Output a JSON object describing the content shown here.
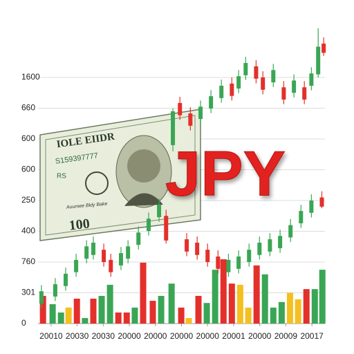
{
  "chart_data": {
    "type": "candlestick",
    "title": "JPY",
    "ylim": [
      0,
      10
    ],
    "yticks": [
      0,
      {
        "value": 1,
        "label": "301"
      },
      {
        "value": 2,
        "label": "760"
      },
      {
        "value": 3,
        "label": "400"
      },
      {
        "value": 4,
        "label": "250"
      },
      {
        "value": 5,
        "label": "600"
      },
      {
        "value": 6,
        "label": "600"
      },
      {
        "value": 7,
        "label": "660"
      },
      {
        "value": 8,
        "label": "1600"
      }
    ],
    "xlim": [
      -0.5,
      10.5
    ],
    "xticks": [
      {
        "value": 0,
        "label": "20010"
      },
      {
        "value": 1,
        "label": "20030"
      },
      {
        "value": 2,
        "label": "20030"
      },
      {
        "value": 3,
        "label": "20000"
      },
      {
        "value": 4,
        "label": "20000"
      },
      {
        "value": 5,
        "label": "20000"
      },
      {
        "value": 6,
        "label": "20000"
      },
      {
        "value": 7,
        "label": "20001"
      },
      {
        "value": 8,
        "label": "20000"
      },
      {
        "value": 9,
        "label": "20009"
      },
      {
        "value": 10,
        "label": "20017"
      }
    ],
    "grid": true,
    "up_color": "#3aa655",
    "down_color": "#e3302b",
    "candles": {
      "x": [
        -0.37,
        0.16,
        0.56,
        0.96,
        1.36,
        1.62,
        2.02,
        2.29,
        2.68,
        2.95,
        3.35,
        3.74,
        4.14,
        4.41,
        4.67,
        4.94,
        5.34,
        5.73,
        6.13,
        6.53,
        6.93,
        7.19,
        7.46,
        7.86,
        8.12,
        8.52,
        8.92,
        9.31,
        9.71,
        9.98,
        10.24,
        10.45,
        5.2,
        5.6,
        6.0,
        6.4,
        6.8,
        7.19,
        7.59,
        7.99,
        8.39,
        8.78,
        9.18,
        9.58,
        9.98,
        10.38
      ],
      "open": [
        0.65,
        0.88,
        1.22,
        1.67,
        2.11,
        2.23,
        2.4,
        2.07,
        1.89,
        2.11,
        2.56,
        3.01,
        3.46,
        3.5,
        5.8,
        7.17,
        6.83,
        6.65,
        6.99,
        7.33,
        7.8,
        7.64,
        8.07,
        8.36,
        8.0,
        7.84,
        7.68,
        7.5,
        7.68,
        7.73,
        8.1,
        9.1,
        2.74,
        2.63,
        2.4,
        2.18,
        1.67,
        1.78,
        2.0,
        2.23,
        2.34,
        2.45,
        2.8,
        3.26,
        3.6,
        4.1
      ],
      "high": [
        1.25,
        1.48,
        1.82,
        2.27,
        2.71,
        2.83,
        2.6,
        2.27,
        2.49,
        2.71,
        3.16,
        3.61,
        4.06,
        3.7,
        7.0,
        7.37,
        7.03,
        7.25,
        7.59,
        7.93,
        8.0,
        8.24,
        8.67,
        8.56,
        8.2,
        8.44,
        7.88,
        8.1,
        7.88,
        8.33,
        9.6,
        9.3,
        2.94,
        2.83,
        2.6,
        2.38,
        2.27,
        2.38,
        2.6,
        2.83,
        2.94,
        3.05,
        3.4,
        3.86,
        4.2,
        4.3
      ],
      "low": [
        0.5,
        0.73,
        1.07,
        1.52,
        1.96,
        2.08,
        1.85,
        1.52,
        1.74,
        1.96,
        2.41,
        2.86,
        3.31,
        2.6,
        5.6,
        6.62,
        6.28,
        6.5,
        6.84,
        7.18,
        7.25,
        7.49,
        7.92,
        7.81,
        7.45,
        7.69,
        7.13,
        7.35,
        7.13,
        7.58,
        8.0,
        8.7,
        2.19,
        2.08,
        1.85,
        1.63,
        1.52,
        1.63,
        1.85,
        2.08,
        2.19,
        2.3,
        2.65,
        3.11,
        3.45,
        3.75
      ],
      "close": [
        1.05,
        1.28,
        1.62,
        2.07,
        2.51,
        2.63,
        2.0,
        1.67,
        2.29,
        2.51,
        2.96,
        3.41,
        3.86,
        2.7,
        6.9,
        6.77,
        6.43,
        7.05,
        7.39,
        7.73,
        7.4,
        8.04,
        8.47,
        7.96,
        7.6,
        8.24,
        7.28,
        7.9,
        7.28,
        8.13,
        9.0,
        8.8,
        2.34,
        2.23,
        2.0,
        1.78,
        2.07,
        2.18,
        2.4,
        2.63,
        2.74,
        2.85,
        3.2,
        3.66,
        4.0,
        3.8
      ]
    },
    "volume": {
      "x": [
        -0.31,
        0.06,
        0.38,
        0.67,
        0.99,
        1.3,
        1.62,
        1.94,
        2.26,
        2.58,
        2.9,
        3.21,
        3.53,
        3.9,
        4.22,
        4.62,
        4.99,
        5.28,
        5.65,
        5.97,
        6.29,
        6.61,
        6.93,
        7.25,
        7.56,
        7.88,
        8.2,
        8.52,
        8.84,
        9.16,
        9.47,
        9.79,
        10.11,
        10.4
      ],
      "values": [
        0.9,
        0.63,
        0.36,
        0.52,
        0.81,
        0.18,
        0.81,
        0.9,
        1.26,
        0.36,
        0.36,
        0.52,
        1.98,
        0.74,
        0.9,
        1.3,
        0.52,
        0.18,
        0.9,
        0.67,
        1.75,
        2.09,
        1.3,
        1.26,
        0.52,
        1.89,
        1.6,
        0.52,
        0.7,
        1.0,
        0.79,
        1.12,
        1.12,
        1.75
      ],
      "colors": [
        "#e3302b",
        "#3aa655",
        "#3aa655",
        "#f4c020",
        "#e3302b",
        "#3aa655",
        "#e3302b",
        "#3aa655",
        "#3aa655",
        "#e3302b",
        "#e3302b",
        "#3aa655",
        "#e3302b",
        "#e3302b",
        "#3aa655",
        "#3aa655",
        "#e3302b",
        "#f4c020",
        "#e3302b",
        "#3aa655",
        "#3aa655",
        "#e3302b",
        "#e3302b",
        "#f4c020",
        "#f4c020",
        "#e3302b",
        "#3aa655",
        "#3aa655",
        "#3aa655",
        "#f4c020",
        "#f4c020",
        "#e3302b",
        "#3aa655",
        "#3aa655"
      ]
    },
    "banknote": {
      "header": "IOLE EIIDR",
      "serial": "S159397777",
      "code": "RS",
      "caption": "Auumee Bldy Bake",
      "denomination": "100"
    }
  }
}
